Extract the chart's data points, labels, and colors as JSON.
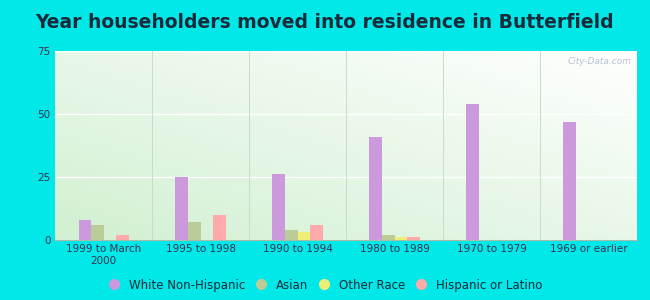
{
  "title": "Year householders moved into residence in Butterfield",
  "categories": [
    "1999 to March\n2000",
    "1995 to 1998",
    "1990 to 1994",
    "1980 to 1989",
    "1970 to 1979",
    "1969 or earlier"
  ],
  "series": {
    "White Non-Hispanic": [
      8,
      25,
      26,
      41,
      54,
      47
    ],
    "Asian": [
      6,
      7,
      4,
      2,
      0,
      0
    ],
    "Other Race": [
      0,
      0,
      3,
      1,
      0,
      0
    ],
    "Hispanic or Latino": [
      2,
      10,
      6,
      1,
      0,
      0
    ]
  },
  "colors": {
    "White Non-Hispanic": "#cc99dd",
    "Asian": "#bbcc99",
    "Other Race": "#eeee77",
    "Hispanic or Latino": "#ffaaaa"
  },
  "ylim": [
    0,
    75
  ],
  "yticks": [
    0,
    25,
    50,
    75
  ],
  "bar_width": 0.13,
  "outer_background": "#00e8e8",
  "title_color": "#1a2a3a",
  "title_fontsize": 13.5,
  "legend_fontsize": 8.5,
  "tick_fontsize": 7.5,
  "watermark": "City-Data.com",
  "bg_colors": [
    "#ffffff",
    "#d4ecd4"
  ],
  "bg_colors2": [
    "#eafaff",
    "#d0ecd0"
  ]
}
